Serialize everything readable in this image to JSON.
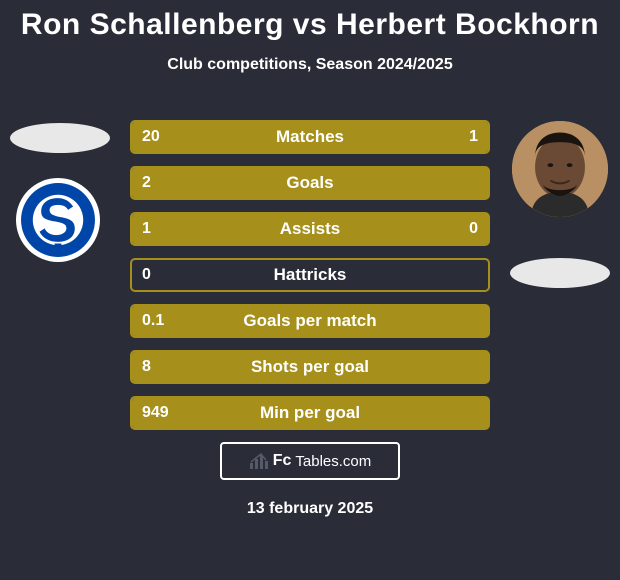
{
  "background_color": "#2a2d37",
  "text_color": "#ffffff",
  "title": "Ron Schallenberg vs Herbert Bockhorn",
  "title_fontsize": 30,
  "title_color": "#ffffff",
  "subtitle": "Club competitions, Season 2024/2025",
  "subtitle_fontsize": 16,
  "subtitle_color": "#ffffff",
  "player1": {
    "name": "Ron Schallenberg",
    "oval_color": "#e8e8e8",
    "badge_bg": "#ffffff",
    "crest_primary": "#0046a8",
    "crest_accent": "#ffffff"
  },
  "player2": {
    "name": "Herbert Bockhorn",
    "oval_color": "#e8e8e8",
    "badge_bg": "#b89064",
    "skin_color": "#6b4a35",
    "hair_color": "#1a1410"
  },
  "stats": {
    "bar_color": "#a68f1b",
    "bar_border_color": "#a68f1b",
    "track_color": "#2a2d37",
    "label_text_color": "#ffffff",
    "value_text_color": "#ffffff",
    "label_fontsize": 17,
    "value_fontsize": 16,
    "rows": [
      {
        "label": "Matches",
        "v1": "20",
        "v2": "1",
        "p1_pct": 95,
        "p2_pct": 5
      },
      {
        "label": "Goals",
        "v1": "2",
        "v2": "",
        "p1_pct": 100,
        "p2_pct": 0
      },
      {
        "label": "Assists",
        "v1": "1",
        "v2": "0",
        "p1_pct": 100,
        "p2_pct": 0
      },
      {
        "label": "Hattricks",
        "v1": "0",
        "v2": "",
        "p1_pct": 0,
        "p2_pct": 0
      },
      {
        "label": "Goals per match",
        "v1": "0.1",
        "v2": "",
        "p1_pct": 100,
        "p2_pct": 0
      },
      {
        "label": "Shots per goal",
        "v1": "8",
        "v2": "",
        "p1_pct": 100,
        "p2_pct": 0
      },
      {
        "label": "Min per goal",
        "v1": "949",
        "v2": "",
        "p1_pct": 100,
        "p2_pct": 0
      }
    ]
  },
  "footer": {
    "brand_bold": "Fc",
    "brand_rest": "Tables.com",
    "brand_fontsize": 16,
    "border_color": "#ffffff",
    "bars_color": "#565a68"
  },
  "date": "13 february 2025",
  "date_fontsize": 16
}
